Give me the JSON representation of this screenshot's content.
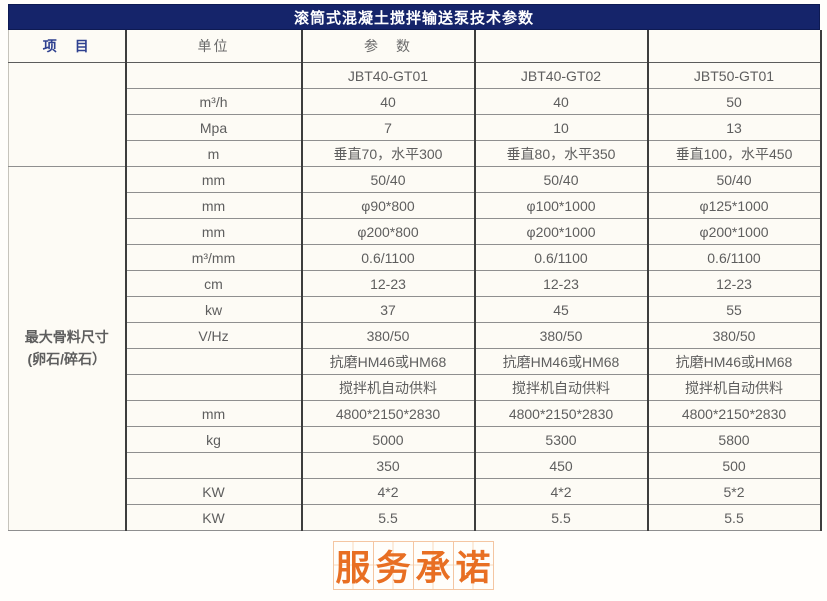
{
  "title": "滚筒式混凝土搅拌输送泵技术参数",
  "table": {
    "header": {
      "item": "项　目",
      "unit": "单位",
      "param": "参　数"
    },
    "models": [
      "JBT40-GT01",
      "JBT40-GT02",
      "JBT50-GT01"
    ],
    "item_group": {
      "line1": "最大骨料尺寸",
      "line2": "(卵石/碎石）"
    },
    "section1_row_count": 3,
    "rows": [
      {
        "unit": "m³/h",
        "values": [
          "40",
          "40",
          "50"
        ]
      },
      {
        "unit": "Mpa",
        "values": [
          "7",
          "10",
          "13"
        ]
      },
      {
        "unit": "m",
        "values": [
          "垂直70，水平300",
          "垂直80，水平350",
          "垂直100，水平450"
        ]
      },
      {
        "unit": "mm",
        "values": [
          "50/40",
          "50/40",
          "50/40"
        ]
      },
      {
        "unit": "mm",
        "values": [
          "φ90*800",
          "φ100*1000",
          "φ125*1000"
        ]
      },
      {
        "unit": "mm",
        "values": [
          "φ200*800",
          "φ200*1000",
          "φ200*1000"
        ]
      },
      {
        "unit": "m³/mm",
        "values": [
          "0.6/1100",
          "0.6/1100",
          "0.6/1100"
        ]
      },
      {
        "unit": "cm",
        "values": [
          "12-23",
          "12-23",
          "12-23"
        ]
      },
      {
        "unit": "kw",
        "values": [
          "37",
          "45",
          "55"
        ]
      },
      {
        "unit": "V/Hz",
        "values": [
          "380/50",
          "380/50",
          "380/50"
        ]
      },
      {
        "unit": "",
        "values": [
          "抗磨HM46或HM68",
          "抗磨HM46或HM68",
          "抗磨HM46或HM68"
        ]
      },
      {
        "unit": "",
        "values": [
          "搅拌机自动供料",
          "搅拌机自动供料",
          "搅拌机自动供料"
        ]
      },
      {
        "unit": "mm",
        "values": [
          "4800*2150*2830",
          "4800*2150*2830",
          "4800*2150*2830"
        ]
      },
      {
        "unit": "kg",
        "values": [
          "5000",
          "5300",
          "5800"
        ]
      },
      {
        "unit": "",
        "values": [
          "350",
          "450",
          "500"
        ]
      },
      {
        "unit": "KW",
        "values": [
          "4*2",
          "4*2",
          "5*2"
        ]
      },
      {
        "unit": "KW",
        "values": [
          "5.5",
          "5.5",
          "5.5"
        ]
      }
    ]
  },
  "stamp": {
    "text": "服务承诺"
  },
  "colors": {
    "title_bar": "#15246a",
    "title_text": "#ffffff",
    "header_item_text": "#2f4190",
    "group_label_text": "#2c3e93",
    "cell_text": "#5e5e5e",
    "vertical_border": "#3d3d3d",
    "horizontal_border": "#8f8f8f",
    "table_bg": "#fdfbf5",
    "stamp_orange": "#e86f23",
    "stamp_grid": "#f9d9bd"
  }
}
